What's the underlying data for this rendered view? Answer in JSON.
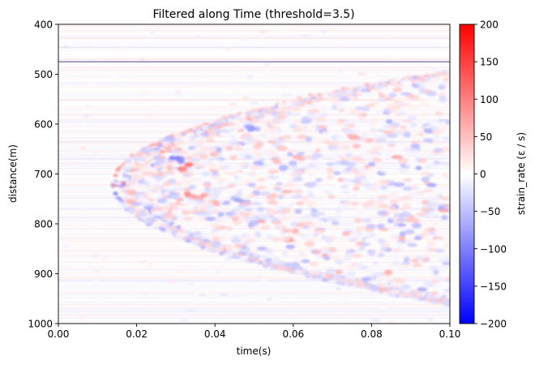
{
  "chart_data": {
    "type": "heatmap",
    "title": "Filtered along Time (threshold=3.5)",
    "xlabel": "time(s)",
    "ylabel": "distance(m)",
    "xlim": [
      0.0,
      0.1
    ],
    "ylim": [
      1000,
      400
    ],
    "y_axis_inverted": true,
    "x_ticks": [
      "0.00",
      "0.02",
      "0.04",
      "0.06",
      "0.08",
      "0.10"
    ],
    "y_ticks": [
      "400",
      "500",
      "600",
      "700",
      "800",
      "900",
      "1000"
    ],
    "colorbar": {
      "label": "strain_rate (ε / s)",
      "colormap": "bwr",
      "range": [
        -200,
        200
      ],
      "ticks": [
        "200",
        "150",
        "100",
        "50",
        "0",
        "−50",
        "−100",
        "−150",
        "−200"
      ],
      "colors": {
        "min": "#0000ff",
        "mid": "#ffffff",
        "max": "#ff0000"
      }
    },
    "reference_line": {
      "distance_m": 475,
      "color": "#4a4a8a"
    },
    "features": [
      {
        "name": "wavefront-apex",
        "time_s": 0.014,
        "distance_m": 720
      },
      {
        "name": "upper-arc-end",
        "time_s": 0.1,
        "distance_m": 495
      },
      {
        "name": "lower-arc-end",
        "time_s": 0.1,
        "distance_m": 960
      },
      {
        "name": "strong-red-patch-1",
        "time_s": 0.032,
        "distance_m": 685,
        "value": 120
      },
      {
        "name": "strong-blue-patch-1",
        "time_s": 0.03,
        "distance_m": 670,
        "value": -110
      },
      {
        "name": "strong-red-patch-2",
        "time_s": 0.035,
        "distance_m": 745,
        "value": 90
      },
      {
        "name": "strong-blue-patch-2",
        "time_s": 0.05,
        "distance_m": 610,
        "value": -90
      }
    ],
    "grid": false
  }
}
